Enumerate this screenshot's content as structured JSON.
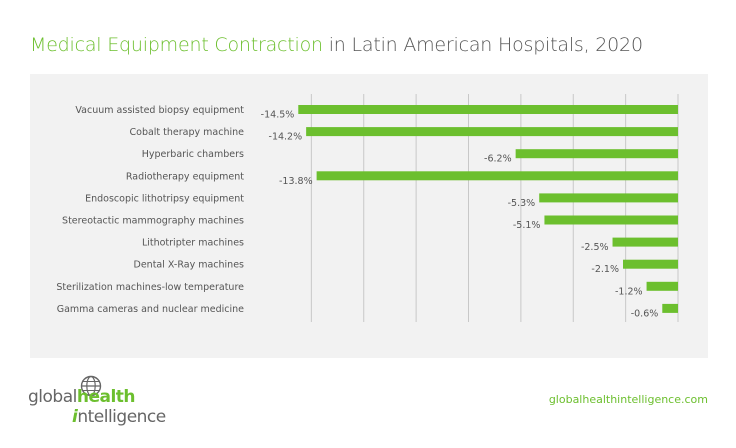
{
  "title": {
    "highlight": "Medical Equipment Contraction",
    "rest": " in Latin American Hospitals, 2020"
  },
  "colors": {
    "bar": "#6cbf2e",
    "title_highlight": "#6cbf2e",
    "text": "#555555",
    "panel": "#f2f2f2",
    "grid": "#c8c8c8"
  },
  "chart_data": {
    "type": "bar",
    "orientation": "horizontal",
    "categories": [
      "Vacuum assisted biopsy equipment",
      "Cobalt therapy machine",
      "Hyperbaric chambers",
      "Radiotherapy equipment",
      "Endoscopic lithotripsy equipment",
      "Stereotactic mammography machines",
      "Lithotripter machines",
      "Dental X-Ray machines",
      "Sterilization machines-low temperature",
      "Gamma cameras and nuclear medicine"
    ],
    "values": [
      -14.5,
      -14.2,
      -6.2,
      -13.8,
      -5.3,
      -5.1,
      -2.5,
      -2.1,
      -1.2,
      -0.6
    ],
    "data_labels": [
      "-14.5%",
      "-14.2%",
      "-6.2%",
      "-13.8%",
      "-5.3%",
      "-5.1%",
      "-2.5%",
      "-2.1%",
      "-1.2%",
      "-0.6%"
    ],
    "xlim": [
      -16,
      0
    ],
    "grid": true,
    "title": "Medical Equipment Contraction in Latin American Hospitals, 2020"
  },
  "footer": {
    "logo_word1": "global",
    "logo_word2": "health",
    "logo_word3_initial": "i",
    "logo_word3_rest": "ntelligence",
    "website": "globalhealthintelligence.com"
  }
}
